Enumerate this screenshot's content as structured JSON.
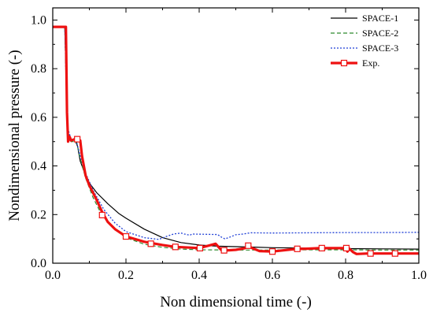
{
  "chart_data": {
    "type": "line",
    "title": "",
    "xlabel": "Non dimensional time (-)",
    "ylabel": "Nondimensional pressure (-)",
    "xlim": [
      0.0,
      1.0
    ],
    "ylim": [
      0.0,
      1.05
    ],
    "x_ticks": [
      "0.0",
      "0.2",
      "0.4",
      "0.6",
      "0.8",
      "1.0"
    ],
    "y_ticks": [
      "0.0",
      "0.2",
      "0.4",
      "0.6",
      "0.8",
      "1.0"
    ],
    "grid": false,
    "legend_position": "top-right",
    "series": [
      {
        "name": "SPACE-1",
        "color": "#000000",
        "style": "solid",
        "points": [
          [
            0.0,
            0.972
          ],
          [
            0.033,
            0.972
          ],
          [
            0.036,
            0.8
          ],
          [
            0.038,
            0.62
          ],
          [
            0.042,
            0.52
          ],
          [
            0.05,
            0.5
          ],
          [
            0.06,
            0.51
          ],
          [
            0.068,
            0.48
          ],
          [
            0.075,
            0.42
          ],
          [
            0.085,
            0.38
          ],
          [
            0.1,
            0.33
          ],
          [
            0.12,
            0.29
          ],
          [
            0.15,
            0.245
          ],
          [
            0.18,
            0.205
          ],
          [
            0.2,
            0.185
          ],
          [
            0.25,
            0.14
          ],
          [
            0.3,
            0.105
          ],
          [
            0.35,
            0.085
          ],
          [
            0.4,
            0.075
          ],
          [
            0.45,
            0.07
          ],
          [
            0.5,
            0.068
          ],
          [
            0.55,
            0.066
          ],
          [
            0.6,
            0.064
          ],
          [
            0.7,
            0.062
          ],
          [
            0.8,
            0.06
          ],
          [
            0.9,
            0.059
          ],
          [
            1.0,
            0.058
          ]
        ]
      },
      {
        "name": "SPACE-2",
        "color": "#2e8b2e",
        "style": "dashed",
        "points": [
          [
            0.0,
            0.972
          ],
          [
            0.033,
            0.972
          ],
          [
            0.036,
            0.78
          ],
          [
            0.04,
            0.55
          ],
          [
            0.05,
            0.5
          ],
          [
            0.065,
            0.5
          ],
          [
            0.075,
            0.43
          ],
          [
            0.09,
            0.35
          ],
          [
            0.11,
            0.27
          ],
          [
            0.13,
            0.21
          ],
          [
            0.16,
            0.15
          ],
          [
            0.2,
            0.105
          ],
          [
            0.25,
            0.078
          ],
          [
            0.3,
            0.065
          ],
          [
            0.35,
            0.058
          ],
          [
            0.4,
            0.055
          ],
          [
            0.5,
            0.054
          ],
          [
            0.6,
            0.054
          ],
          [
            0.7,
            0.055
          ],
          [
            0.8,
            0.055
          ],
          [
            0.9,
            0.054
          ],
          [
            1.0,
            0.054
          ]
        ]
      },
      {
        "name": "SPACE-3",
        "color": "#1f3fd6",
        "style": "dotted",
        "points": [
          [
            0.0,
            0.972
          ],
          [
            0.033,
            0.972
          ],
          [
            0.036,
            0.78
          ],
          [
            0.04,
            0.56
          ],
          [
            0.05,
            0.51
          ],
          [
            0.065,
            0.5
          ],
          [
            0.075,
            0.44
          ],
          [
            0.09,
            0.37
          ],
          [
            0.11,
            0.3
          ],
          [
            0.14,
            0.22
          ],
          [
            0.17,
            0.165
          ],
          [
            0.2,
            0.13
          ],
          [
            0.25,
            0.105
          ],
          [
            0.29,
            0.098
          ],
          [
            0.31,
            0.11
          ],
          [
            0.33,
            0.12
          ],
          [
            0.35,
            0.124
          ],
          [
            0.36,
            0.12
          ],
          [
            0.375,
            0.115
          ],
          [
            0.38,
            0.12
          ],
          [
            0.45,
            0.118
          ],
          [
            0.46,
            0.108
          ],
          [
            0.47,
            0.1
          ],
          [
            0.48,
            0.105
          ],
          [
            0.5,
            0.117
          ],
          [
            0.52,
            0.12
          ],
          [
            0.54,
            0.125
          ],
          [
            0.6,
            0.124
          ],
          [
            0.7,
            0.125
          ],
          [
            0.8,
            0.126
          ],
          [
            0.9,
            0.126
          ],
          [
            1.0,
            0.127
          ]
        ]
      },
      {
        "name": "Exp.",
        "color": "#ee1111",
        "style": "solid-markers",
        "points": [
          [
            0.0,
            0.972
          ],
          [
            0.036,
            0.972
          ],
          [
            0.039,
            0.62
          ],
          [
            0.042,
            0.5
          ],
          [
            0.046,
            0.52
          ],
          [
            0.05,
            0.505
          ],
          [
            0.06,
            0.51
          ],
          [
            0.075,
            0.505
          ],
          [
            0.08,
            0.44
          ],
          [
            0.09,
            0.36
          ],
          [
            0.1,
            0.32
          ],
          [
            0.12,
            0.26
          ],
          [
            0.135,
            0.21
          ],
          [
            0.15,
            0.17
          ],
          [
            0.17,
            0.14
          ],
          [
            0.2,
            0.11
          ],
          [
            0.25,
            0.088
          ],
          [
            0.3,
            0.075
          ],
          [
            0.335,
            0.067
          ],
          [
            0.38,
            0.064
          ],
          [
            0.4,
            0.062
          ],
          [
            0.43,
            0.074
          ],
          [
            0.445,
            0.08
          ],
          [
            0.452,
            0.068
          ],
          [
            0.462,
            0.052
          ],
          [
            0.48,
            0.053
          ],
          [
            0.5,
            0.055
          ],
          [
            0.525,
            0.062
          ],
          [
            0.535,
            0.072
          ],
          [
            0.545,
            0.062
          ],
          [
            0.565,
            0.05
          ],
          [
            0.6,
            0.048
          ],
          [
            0.66,
            0.058
          ],
          [
            0.7,
            0.06
          ],
          [
            0.73,
            0.062
          ],
          [
            0.8,
            0.062
          ],
          [
            0.805,
            0.048
          ],
          [
            0.81,
            0.06
          ],
          [
            0.82,
            0.046
          ],
          [
            0.83,
            0.038
          ],
          [
            0.86,
            0.04
          ],
          [
            0.9,
            0.04
          ],
          [
            0.93,
            0.04
          ],
          [
            0.97,
            0.04
          ],
          [
            1.0,
            0.04
          ]
        ],
        "markers": [
          [
            0.067,
            0.51
          ],
          [
            0.135,
            0.198
          ],
          [
            0.2,
            0.11
          ],
          [
            0.268,
            0.08
          ],
          [
            0.335,
            0.067
          ],
          [
            0.402,
            0.062
          ],
          [
            0.468,
            0.053
          ],
          [
            0.534,
            0.072
          ],
          [
            0.6,
            0.048
          ],
          [
            0.668,
            0.059
          ],
          [
            0.735,
            0.062
          ],
          [
            0.802,
            0.062
          ],
          [
            0.868,
            0.04
          ],
          [
            0.935,
            0.04
          ]
        ]
      }
    ]
  }
}
